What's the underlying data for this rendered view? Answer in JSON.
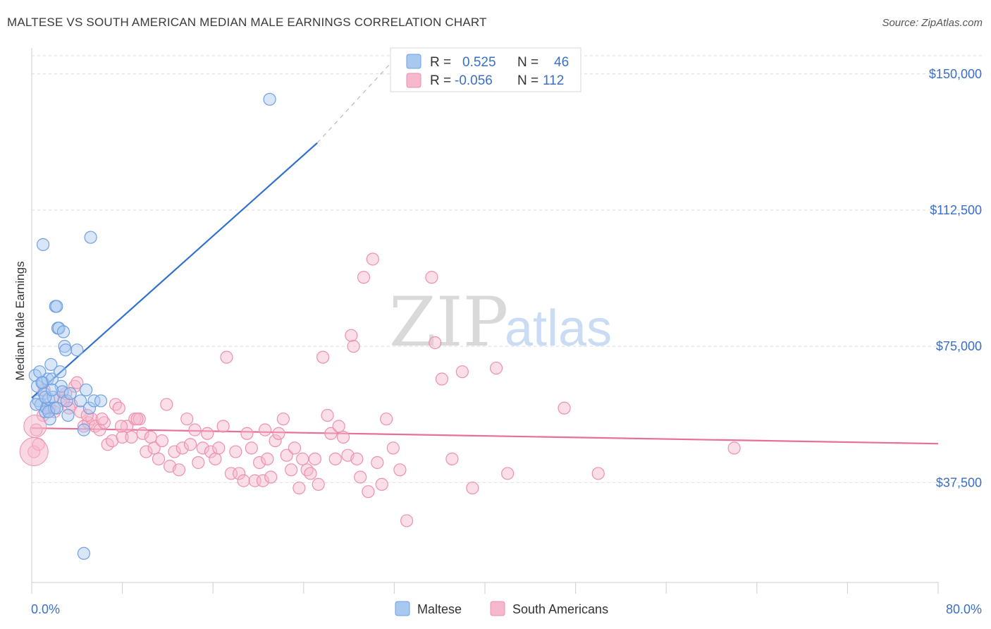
{
  "title": "MALTESE VS SOUTH AMERICAN MEDIAN MALE EARNINGS CORRELATION CHART",
  "source": "Source: ZipAtlas.com",
  "watermark": {
    "zip": "ZIP",
    "atlas": "atlas"
  },
  "legend": {
    "rows": [
      {
        "r_label": "R =",
        "r_value": "0.525",
        "n_label": "N =",
        "n_value": "46",
        "color": "#a9c8f0"
      },
      {
        "r_label": "R =",
        "r_value": "-0.056",
        "n_label": "N =",
        "n_value": "112",
        "color": "#f6b8cc"
      }
    ]
  },
  "bottom_legend": [
    "Maltese",
    "South Americans"
  ],
  "chart_data": {
    "type": "scatter",
    "title": "MALTESE VS SOUTH AMERICAN MEDIAN MALE EARNINGS CORRELATION CHART",
    "ylabel": "Median Male Earnings",
    "xlabel": "",
    "xlim": [
      0,
      80
    ],
    "ylim": [
      10000,
      155000
    ],
    "x_tick_labels": [
      "0.0%",
      "80.0%"
    ],
    "y_ticks": [
      37500,
      75000,
      112500,
      150000
    ],
    "y_tick_labels": [
      "$37,500",
      "$75,000",
      "$112,500",
      "$150,000"
    ],
    "grid": true,
    "legend_position": "top-center",
    "series": [
      {
        "name": "Maltese",
        "color": "#6fa0e0",
        "fill": "#a9c8f0",
        "trend_color": "#2f6fd0",
        "trend": {
          "x0": 0,
          "y0": 60800,
          "x1": 25.2,
          "y1": 131000,
          "dash_to_x": 31.7,
          "dash_to_y": 153000
        },
        "points": [
          [
            0.3,
            67000
          ],
          [
            0.5,
            64000
          ],
          [
            0.6,
            60000
          ],
          [
            0.8,
            59000
          ],
          [
            1.0,
            65000
          ],
          [
            1.1,
            62000
          ],
          [
            1.2,
            57000
          ],
          [
            1.3,
            58000
          ],
          [
            1.4,
            66000
          ],
          [
            1.5,
            60500
          ],
          [
            1.6,
            55000
          ],
          [
            1.7,
            70000
          ],
          [
            1.8,
            66000
          ],
          [
            1.9,
            61000
          ],
          [
            2.0,
            58000
          ],
          [
            2.1,
            86000
          ],
          [
            2.2,
            86000
          ],
          [
            2.3,
            80000
          ],
          [
            2.4,
            80000
          ],
          [
            2.5,
            68000
          ],
          [
            2.6,
            64000
          ],
          [
            2.7,
            62500
          ],
          [
            2.8,
            79000
          ],
          [
            2.9,
            75000
          ],
          [
            3.0,
            74000
          ],
          [
            3.1,
            60000
          ],
          [
            3.2,
            56000
          ],
          [
            3.4,
            62000
          ],
          [
            4.0,
            74000
          ],
          [
            4.3,
            60000
          ],
          [
            4.6,
            52000
          ],
          [
            4.8,
            63000
          ],
          [
            5.1,
            58000
          ],
          [
            5.5,
            60000
          ],
          [
            5.2,
            105000
          ],
          [
            6.1,
            60000
          ],
          [
            1.0,
            103000
          ],
          [
            21.0,
            143000
          ],
          [
            4.6,
            18000
          ],
          [
            0.4,
            59000
          ],
          [
            0.7,
            68000
          ],
          [
            1.2,
            61000
          ],
          [
            1.5,
            57000
          ],
          [
            2.2,
            58000
          ],
          [
            0.9,
            65000
          ],
          [
            1.8,
            63000
          ]
        ]
      },
      {
        "name": "South Americans",
        "color": "#ee90ad",
        "fill": "#f6b8cc",
        "trend_color": "#e86f98",
        "trend": {
          "x0": 0,
          "y0": 52500,
          "x1": 80,
          "y1": 48200
        },
        "points": [
          [
            0.2,
            46000
          ],
          [
            0.4,
            52000
          ],
          [
            1.0,
            56000
          ],
          [
            1.3,
            58000
          ],
          [
            1.6,
            58000
          ],
          [
            2.0,
            57000
          ],
          [
            2.5,
            61000
          ],
          [
            3.0,
            62000
          ],
          [
            3.5,
            59000
          ],
          [
            3.8,
            64000
          ],
          [
            4.0,
            65000
          ],
          [
            4.3,
            57000
          ],
          [
            4.6,
            53000
          ],
          [
            5.0,
            54000
          ],
          [
            5.3,
            55000
          ],
          [
            5.6,
            53000
          ],
          [
            6.0,
            52000
          ],
          [
            6.4,
            54000
          ],
          [
            6.7,
            48000
          ],
          [
            7.1,
            49000
          ],
          [
            7.4,
            59000
          ],
          [
            7.7,
            58000
          ],
          [
            8.0,
            50000
          ],
          [
            8.4,
            53000
          ],
          [
            8.8,
            50000
          ],
          [
            9.1,
            55000
          ],
          [
            9.5,
            55000
          ],
          [
            9.8,
            51000
          ],
          [
            10.1,
            46000
          ],
          [
            10.5,
            50000
          ],
          [
            10.8,
            47000
          ],
          [
            11.2,
            44000
          ],
          [
            11.5,
            49000
          ],
          [
            11.9,
            59000
          ],
          [
            12.2,
            42000
          ],
          [
            12.6,
            46000
          ],
          [
            13.0,
            41000
          ],
          [
            13.3,
            47000
          ],
          [
            13.7,
            55000
          ],
          [
            14.0,
            48000
          ],
          [
            14.4,
            52000
          ],
          [
            14.7,
            43000
          ],
          [
            15.1,
            47000
          ],
          [
            15.5,
            51000
          ],
          [
            15.8,
            46000
          ],
          [
            16.2,
            44000
          ],
          [
            16.5,
            47000
          ],
          [
            16.9,
            53000
          ],
          [
            17.2,
            72000
          ],
          [
            17.6,
            40000
          ],
          [
            18.0,
            46000
          ],
          [
            18.3,
            40000
          ],
          [
            18.7,
            38000
          ],
          [
            19.0,
            51000
          ],
          [
            19.4,
            47000
          ],
          [
            19.7,
            38000
          ],
          [
            20.1,
            43000
          ],
          [
            20.4,
            38000
          ],
          [
            20.8,
            44000
          ],
          [
            21.1,
            39000
          ],
          [
            21.5,
            49000
          ],
          [
            21.8,
            51000
          ],
          [
            22.2,
            55000
          ],
          [
            22.5,
            45000
          ],
          [
            22.9,
            41000
          ],
          [
            23.2,
            47000
          ],
          [
            23.6,
            36000
          ],
          [
            23.9,
            44000
          ],
          [
            24.3,
            41000
          ],
          [
            24.6,
            40000
          ],
          [
            25.0,
            44000
          ],
          [
            25.3,
            37000
          ],
          [
            25.7,
            72000
          ],
          [
            26.1,
            56000
          ],
          [
            26.4,
            51000
          ],
          [
            26.8,
            44000
          ],
          [
            27.1,
            53000
          ],
          [
            27.5,
            50000
          ],
          [
            27.9,
            45000
          ],
          [
            28.2,
            78000
          ],
          [
            28.4,
            75000
          ],
          [
            28.7,
            44000
          ],
          [
            29.0,
            39000
          ],
          [
            29.3,
            94000
          ],
          [
            29.7,
            35000
          ],
          [
            30.1,
            99000
          ],
          [
            30.5,
            43000
          ],
          [
            30.9,
            37000
          ],
          [
            31.3,
            55000
          ],
          [
            31.9,
            47000
          ],
          [
            32.5,
            41000
          ],
          [
            33.1,
            27000
          ],
          [
            35.3,
            94000
          ],
          [
            35.6,
            76000
          ],
          [
            36.2,
            66000
          ],
          [
            37.1,
            44000
          ],
          [
            38.0,
            68000
          ],
          [
            38.9,
            36000
          ],
          [
            41.0,
            69000
          ],
          [
            42.0,
            40000
          ],
          [
            47.0,
            58000
          ],
          [
            50.0,
            40000
          ],
          [
            62.0,
            47000
          ],
          [
            0.6,
            48000
          ],
          [
            1.1,
            63000
          ],
          [
            2.8,
            60000
          ],
          [
            3.3,
            58000
          ],
          [
            4.9,
            56000
          ],
          [
            6.2,
            55000
          ],
          [
            7.9,
            53000
          ],
          [
            9.3,
            55000
          ],
          [
            20.6,
            52000
          ]
        ]
      }
    ]
  }
}
